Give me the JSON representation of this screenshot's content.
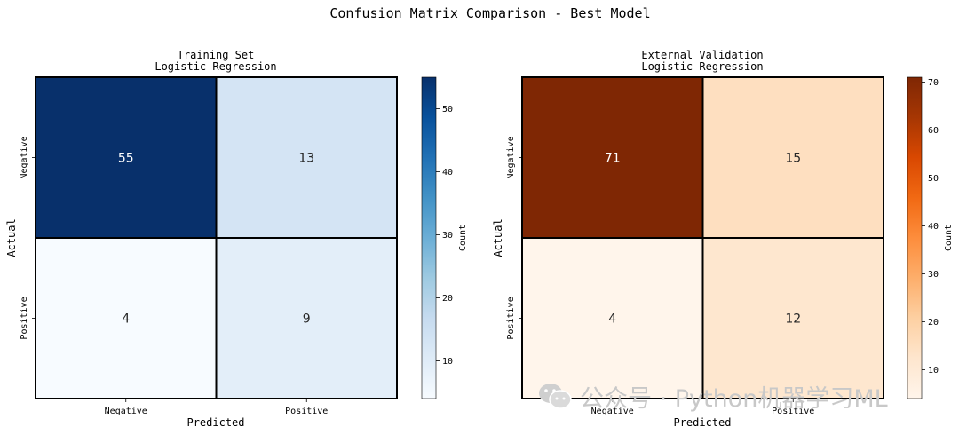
{
  "figure_title": "Confusion Matrix Comparison - Best Model",
  "watermark": "公众号 · Python机器学习ML",
  "chart_data": [
    {
      "type": "heatmap",
      "title": "Training Set",
      "subtitle": "Logistic Regression",
      "xlabel": "Predicted",
      "ylabel": "Actual",
      "x_categories": [
        "Negative",
        "Positive"
      ],
      "y_categories": [
        "Negative",
        "Positive"
      ],
      "values": [
        [
          55,
          13
        ],
        [
          4,
          9
        ]
      ],
      "colorbar": {
        "label": "Count",
        "ticks": [
          10,
          20,
          30,
          40,
          50
        ],
        "range": [
          4,
          55
        ]
      },
      "colormap": "Blues",
      "colors": {
        "low": "#f7fbff",
        "high": "#08306b"
      }
    },
    {
      "type": "heatmap",
      "title": "External Validation",
      "subtitle": "Logistic Regression",
      "xlabel": "Predicted",
      "ylabel": "Actual",
      "x_categories": [
        "Negative",
        "Positive"
      ],
      "y_categories": [
        "Negative",
        "Positive"
      ],
      "values": [
        [
          71,
          15
        ],
        [
          4,
          12
        ]
      ],
      "colorbar": {
        "label": "Count",
        "ticks": [
          10,
          20,
          30,
          40,
          50,
          60,
          70
        ],
        "range": [
          4,
          71
        ]
      },
      "colormap": "Oranges",
      "colors": {
        "low": "#fff5eb",
        "high": "#7f2704"
      }
    }
  ]
}
